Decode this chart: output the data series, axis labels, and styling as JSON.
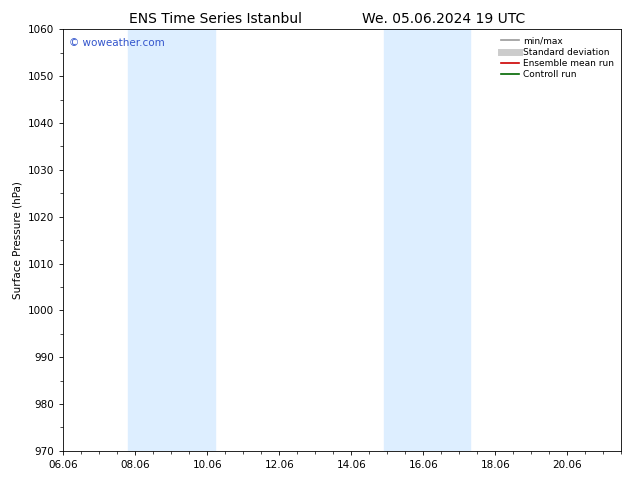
{
  "title_left": "ENS Time Series Istanbul",
  "title_right": "We. 05.06.2024 19 UTC",
  "ylabel": "Surface Pressure (hPa)",
  "ylim": [
    970,
    1060
  ],
  "yticks": [
    970,
    980,
    990,
    1000,
    1010,
    1020,
    1030,
    1040,
    1050,
    1060
  ],
  "xlim": [
    6.0,
    21.5
  ],
  "xtick_labels": [
    "06.06",
    "08.06",
    "10.06",
    "12.06",
    "14.06",
    "16.06",
    "18.06",
    "20.06"
  ],
  "xtick_positions": [
    6,
    8,
    10,
    12,
    14,
    16,
    18,
    20
  ],
  "shaded_bands": [
    {
      "xmin": 7.8,
      "xmax": 10.2
    },
    {
      "xmin": 14.9,
      "xmax": 17.3
    }
  ],
  "shade_color": "#ddeeff",
  "watermark": "© woweather.com",
  "watermark_color": "#3355cc",
  "legend_items": [
    {
      "label": "min/max",
      "color": "#999999",
      "lw": 1.2
    },
    {
      "label": "Standard deviation",
      "color": "#cccccc",
      "lw": 5
    },
    {
      "label": "Ensemble mean run",
      "color": "#cc0000",
      "lw": 1.2
    },
    {
      "label": "Controll run",
      "color": "#006600",
      "lw": 1.2
    }
  ],
  "bg_color": "#ffffff",
  "spine_color": "#000000",
  "tick_color": "#000000",
  "font_size": 7.5,
  "title_font_size": 10
}
